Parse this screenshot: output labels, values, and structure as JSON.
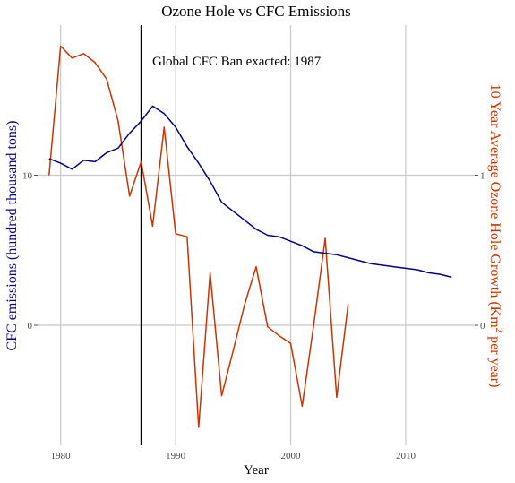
{
  "chart_data": {
    "type": "line",
    "title": "Ozone Hole vs CFC Emissions",
    "xlabel": "Year",
    "ylabel_left": "CFC emissions (hundred thousand tons)",
    "ylabel_right": "10 Year Average Ozone Hole Growth (Km",
    "ylabel_right_sup": "2",
    "ylabel_right_tail": " per year)",
    "xlim": [
      1978,
      2016
    ],
    "ylim_left": [
      -8,
      20
    ],
    "ylim_right": [
      -0.8,
      2.0
    ],
    "x_ticks": [
      1980,
      1990,
      2000,
      2010
    ],
    "x_tick_labels": [
      "1980",
      "1990",
      "2000",
      "2010"
    ],
    "y_left_ticks": [
      0,
      10
    ],
    "y_left_tick_labels": [
      "0",
      "10"
    ],
    "y_right_ticks": [
      0,
      1
    ],
    "y_right_tick_labels": [
      "0",
      "1"
    ],
    "grid": true,
    "annotation": {
      "x": 1987,
      "text": "Global CFC Ban exacted: 1987"
    },
    "colors": {
      "cfc": "#00008b",
      "ozone": "#cc3300",
      "left_label": "#00008b",
      "right_label": "#cc3300",
      "vline": "#000000"
    },
    "series": [
      {
        "axis": "left",
        "x": [
          1979,
          1980,
          1981,
          1982,
          1983,
          1984,
          1985,
          1986,
          1987,
          1988,
          1989,
          1990,
          1991,
          1992,
          1993,
          1994,
          1995,
          1996,
          1997,
          1998,
          1999,
          2000,
          2001,
          2002,
          2003,
          2004,
          2005,
          2006,
          2007,
          2008,
          2009,
          2010,
          2011,
          2012,
          2013,
          2014
        ],
        "values": [
          11.1,
          10.8,
          10.4,
          11.0,
          10.9,
          11.5,
          11.8,
          12.8,
          13.6,
          14.6,
          14.1,
          13.2,
          11.9,
          10.8,
          9.6,
          8.2,
          7.6,
          7.0,
          6.4,
          6.0,
          5.9,
          5.6,
          5.3,
          4.9,
          4.8,
          4.7,
          4.5,
          4.3,
          4.1,
          4.0,
          3.9,
          3.8,
          3.7,
          3.5,
          3.4,
          3.2
        ]
      },
      {
        "axis": "right",
        "x": [
          1979,
          1980,
          1981,
          1982,
          1983,
          1984,
          1985,
          1986,
          1987,
          1988,
          1989,
          1990,
          1991,
          1992,
          1993,
          1994,
          1995,
          1996,
          1997,
          1998,
          1999,
          2000,
          2001,
          2002,
          2003,
          2004,
          2005
        ],
        "values": [
          1.0,
          1.86,
          1.78,
          1.81,
          1.75,
          1.64,
          1.36,
          0.86,
          1.09,
          0.66,
          1.32,
          0.61,
          0.59,
          -0.68,
          0.35,
          -0.47,
          -0.17,
          0.14,
          0.39,
          -0.01,
          -0.07,
          -0.12,
          -0.54,
          0.0,
          0.58,
          -0.48,
          0.14
        ]
      }
    ]
  }
}
